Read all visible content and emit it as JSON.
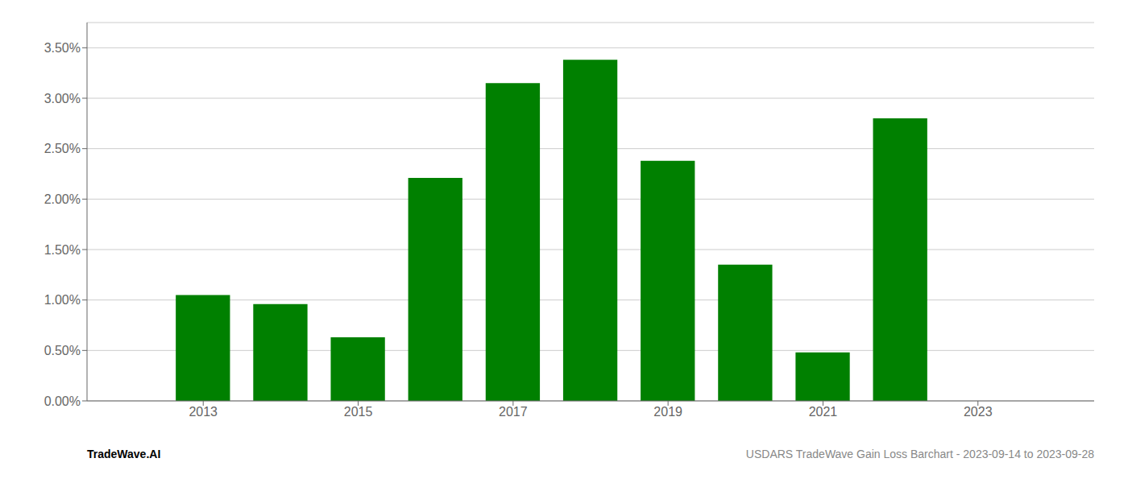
{
  "chart_data": {
    "type": "bar",
    "x": [
      2013,
      2014,
      2015,
      2016,
      2017,
      2018,
      2019,
      2020,
      2021,
      2022
    ],
    "values": [
      0.0105,
      0.0096,
      0.0063,
      0.0221,
      0.0315,
      0.0338,
      0.0238,
      0.0135,
      0.0048,
      0.028
    ],
    "color": "#008000",
    "xlim": [
      2011.5,
      2024.5
    ],
    "xticks": [
      2013,
      2015,
      2017,
      2019,
      2021,
      2023
    ],
    "ylim": [
      0.0,
      0.0375
    ],
    "yticks": [
      {
        "value": 0.0,
        "label": "0.00%"
      },
      {
        "value": 0.005,
        "label": "0.50%"
      },
      {
        "value": 0.01,
        "label": "1.00%"
      },
      {
        "value": 0.015,
        "label": "1.50%"
      },
      {
        "value": 0.02,
        "label": "2.00%"
      },
      {
        "value": 0.025,
        "label": "2.50%"
      },
      {
        "value": 0.03,
        "label": "3.00%"
      },
      {
        "value": 0.035,
        "label": "3.50%"
      }
    ],
    "grid": true,
    "annotations": [
      "TradeWave.AI",
      "USDARS TradeWave Gain Loss Barchart - 2023-09-14 to 2023-09-28"
    ]
  }
}
